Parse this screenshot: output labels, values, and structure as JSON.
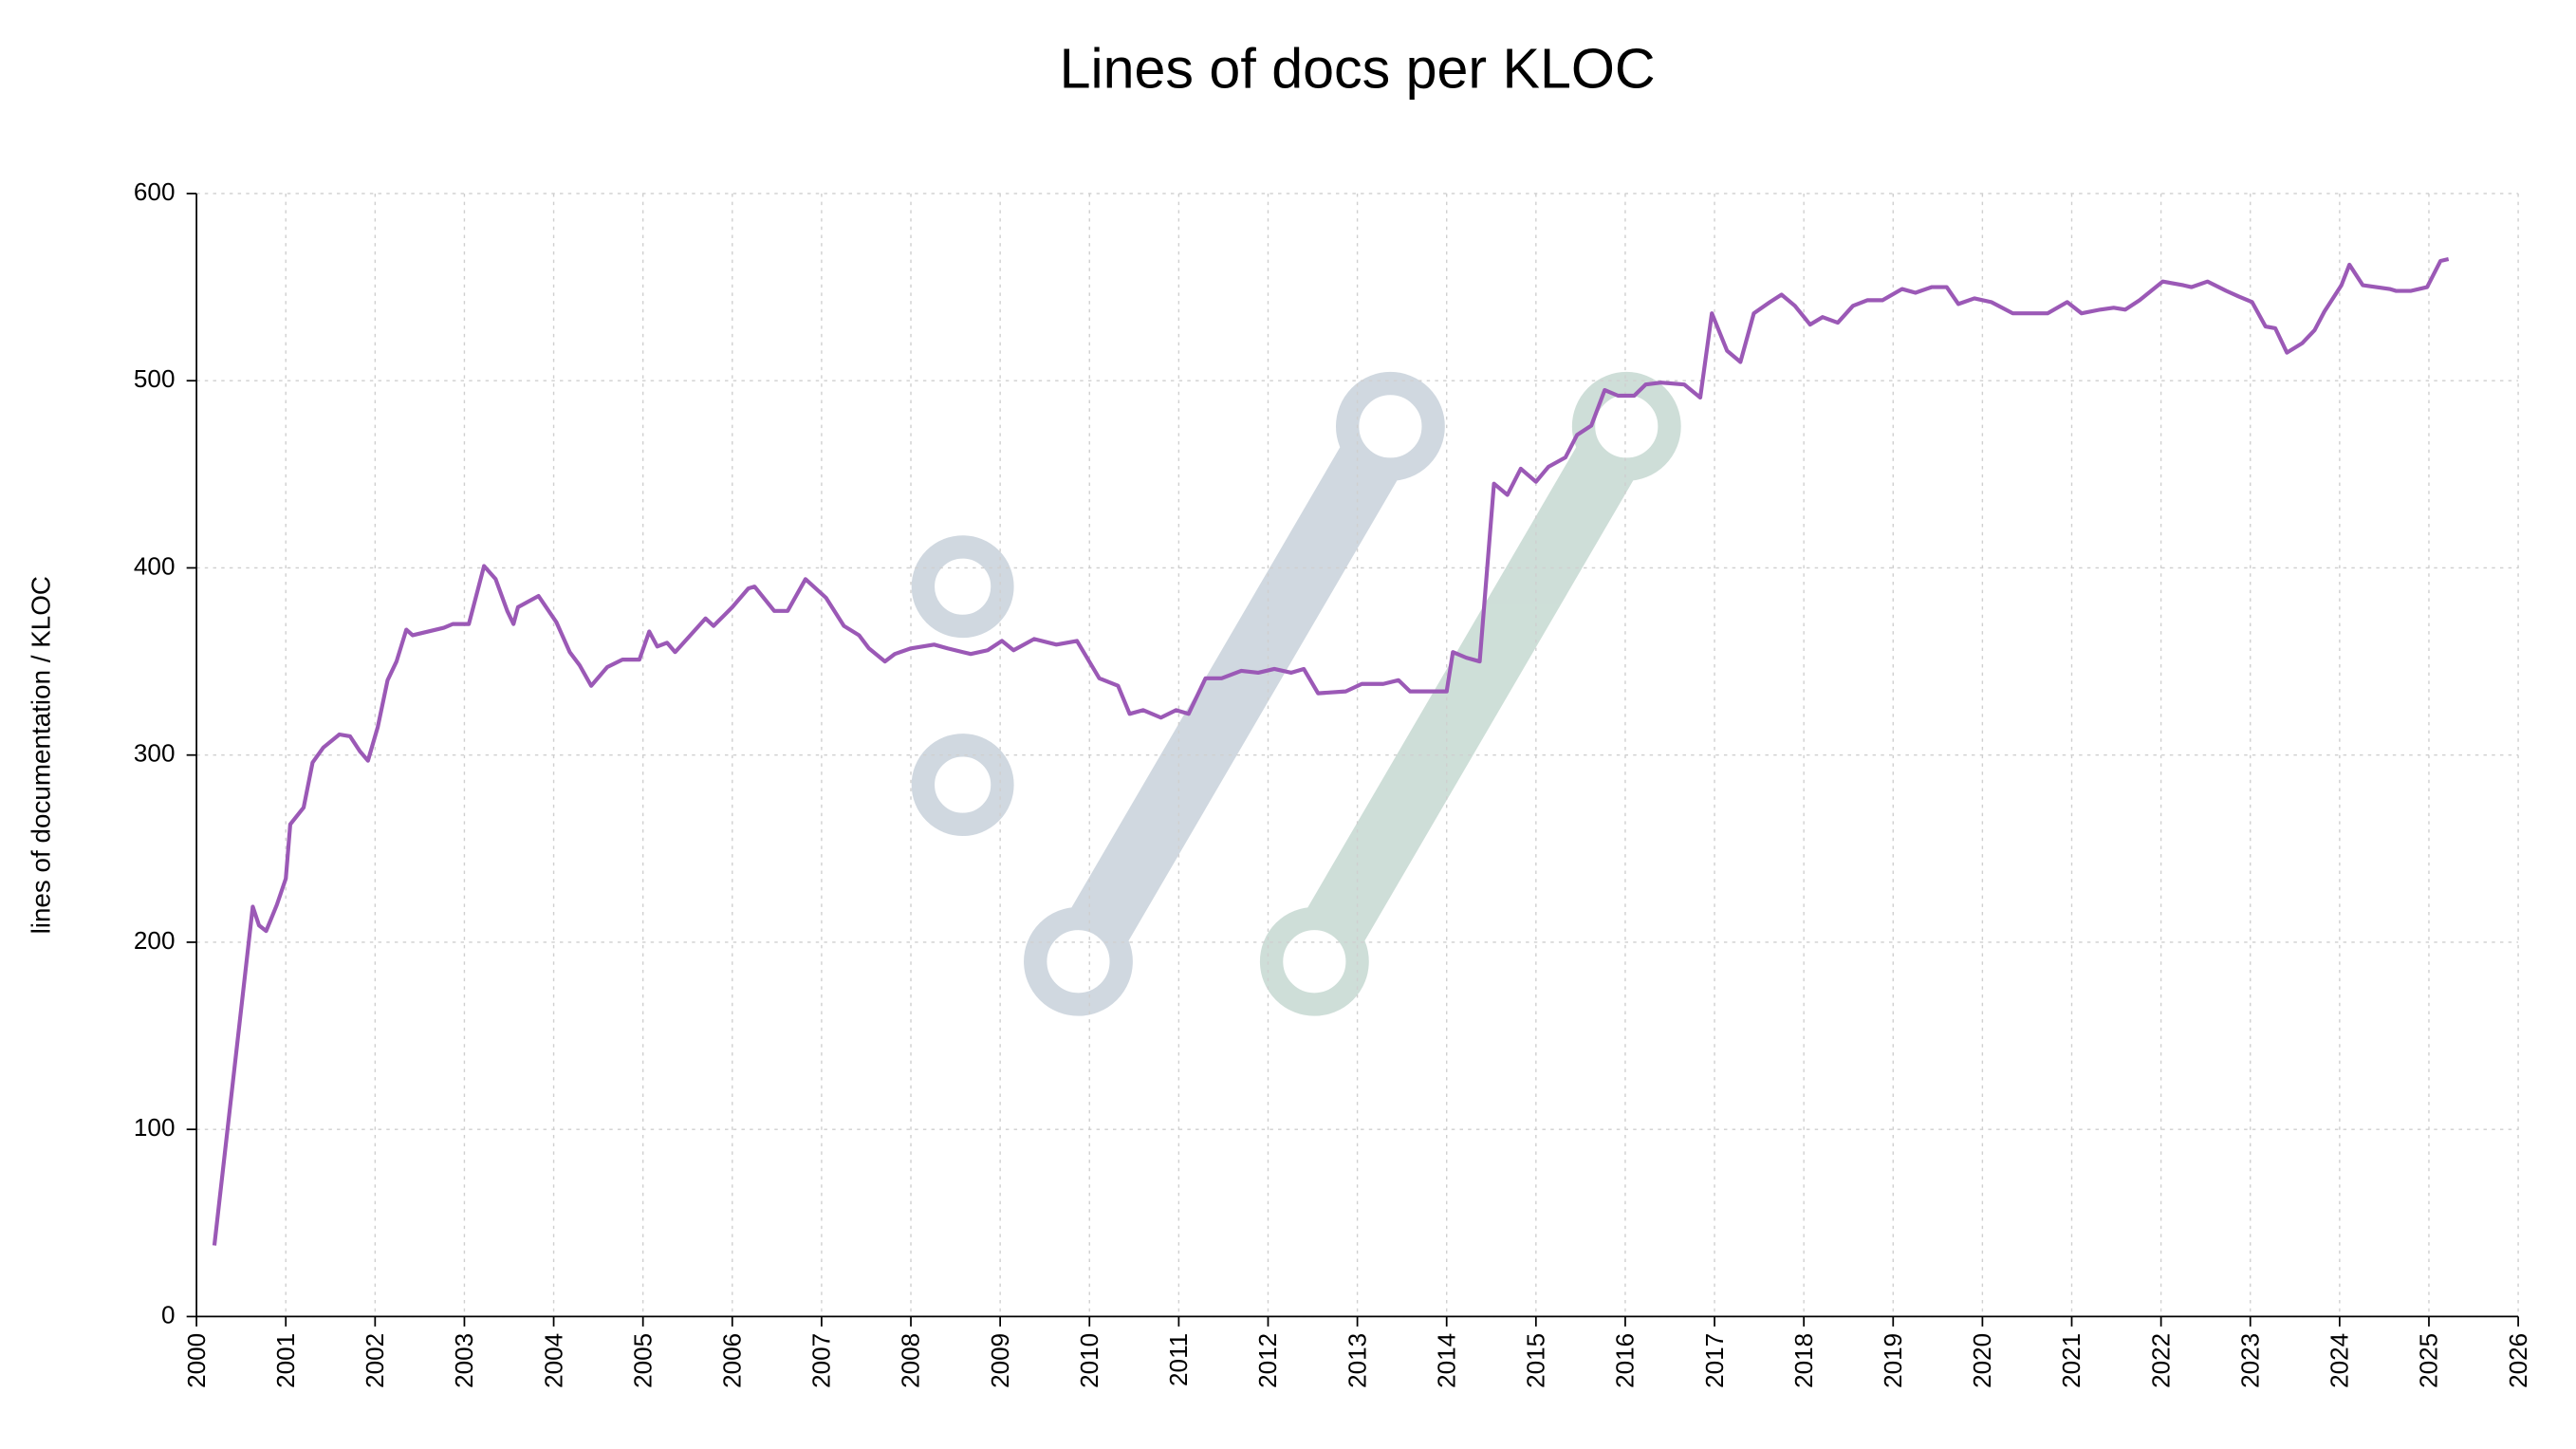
{
  "chart_data": {
    "type": "line",
    "title": "Lines of docs per KLOC",
    "y_label": "lines of documentation / KLOC",
    "x": [
      2000.2,
      2000.63,
      2000.7,
      2000.78,
      2000.9,
      2001.0,
      2001.05,
      2001.2,
      2001.3,
      2001.42,
      2001.6,
      2001.72,
      2001.83,
      2001.92,
      2002.03,
      2002.14,
      2002.24,
      2002.35,
      2002.42,
      2002.77,
      2002.87,
      2003.05,
      2003.22,
      2003.35,
      2003.48,
      2003.55,
      2003.6,
      2003.83,
      2004.03,
      2004.18,
      2004.29,
      2004.42,
      2004.6,
      2004.77,
      2004.96,
      2005.07,
      2005.16,
      2005.27,
      2005.36,
      2005.7,
      2005.79,
      2006.0,
      2006.18,
      2006.25,
      2006.47,
      2006.62,
      2006.82,
      2007.05,
      2007.25,
      2007.42,
      2007.53,
      2007.71,
      2007.82,
      2008.0,
      2008.26,
      2008.41,
      2008.67,
      2008.86,
      2009.02,
      2009.15,
      2009.38,
      2009.63,
      2009.86,
      2010.11,
      2010.32,
      2010.45,
      2010.6,
      2010.8,
      2010.97,
      2011.11,
      2011.3,
      2011.48,
      2011.7,
      2011.89,
      2012.07,
      2012.26,
      2012.4,
      2012.56,
      2012.87,
      2013.05,
      2013.29,
      2013.46,
      2013.59,
      2013.89,
      2014.0,
      2014.07,
      2014.22,
      2014.37,
      2014.53,
      2014.68,
      2014.83,
      2015.0,
      2015.14,
      2015.33,
      2015.46,
      2015.62,
      2015.77,
      2015.92,
      2016.1,
      2016.23,
      2016.4,
      2016.66,
      2016.84,
      2016.97,
      2017.14,
      2017.29,
      2017.44,
      2017.62,
      2017.75,
      2017.9,
      2018.07,
      2018.21,
      2018.38,
      2018.55,
      2018.71,
      2018.88,
      2019.1,
      2019.25,
      2019.43,
      2019.6,
      2019.73,
      2019.91,
      2020.1,
      2020.34,
      2020.54,
      2020.73,
      2020.95,
      2021.11,
      2021.32,
      2021.47,
      2021.6,
      2021.76,
      2022.02,
      2022.25,
      2022.34,
      2022.52,
      2022.73,
      2022.87,
      2023.02,
      2023.17,
      2023.28,
      2023.41,
      2023.58,
      2023.72,
      2023.83,
      2024.02,
      2024.11,
      2024.26,
      2024.56,
      2024.63,
      2024.8,
      2024.98,
      2025.13,
      2025.22
    ],
    "series": [
      {
        "color": "#9b59b6",
        "values": [
          38,
          219,
          209,
          206,
          220,
          234,
          263,
          272,
          296,
          304,
          311,
          310,
          302,
          297,
          315,
          340,
          350,
          367,
          364,
          368,
          370,
          370,
          401,
          394,
          377,
          370,
          379,
          385,
          371,
          355,
          348,
          337,
          347,
          351,
          351,
          366,
          358,
          360,
          355,
          373,
          369,
          379,
          389,
          390,
          377,
          377,
          394,
          384,
          369,
          364,
          357,
          350,
          354,
          357,
          359,
          357,
          354,
          356,
          361,
          356,
          362,
          359,
          361,
          341,
          337,
          322,
          324,
          320,
          324,
          322,
          341,
          341,
          345,
          344,
          346,
          344,
          346,
          333,
          334,
          338,
          338,
          340,
          334,
          334,
          334,
          355,
          352,
          350,
          445,
          439,
          453,
          446,
          454,
          459,
          471,
          476,
          495,
          492,
          492,
          498,
          499,
          498,
          491,
          536,
          516,
          510,
          536,
          542,
          546,
          540,
          530,
          534,
          531,
          540,
          543,
          543,
          549,
          547,
          550,
          550,
          541,
          544,
          542,
          536,
          536,
          536,
          542,
          536,
          538,
          539,
          538,
          543,
          553,
          551,
          550,
          553,
          548,
          545,
          542,
          529,
          528,
          515,
          520,
          527,
          537,
          551,
          562,
          551,
          549,
          548,
          548,
          550,
          564,
          565
        ]
      }
    ],
    "xlim": [
      2000,
      2026
    ],
    "xticks": [
      2000,
      2001,
      2002,
      2003,
      2004,
      2005,
      2006,
      2007,
      2008,
      2009,
      2010,
      2011,
      2012,
      2013,
      2014,
      2015,
      2016,
      2017,
      2018,
      2019,
      2020,
      2021,
      2022,
      2023,
      2024,
      2025,
      2026
    ],
    "ylim": [
      0,
      600
    ],
    "yticks": [
      0,
      100,
      200,
      300,
      400,
      500,
      600
    ],
    "grid": true
  }
}
